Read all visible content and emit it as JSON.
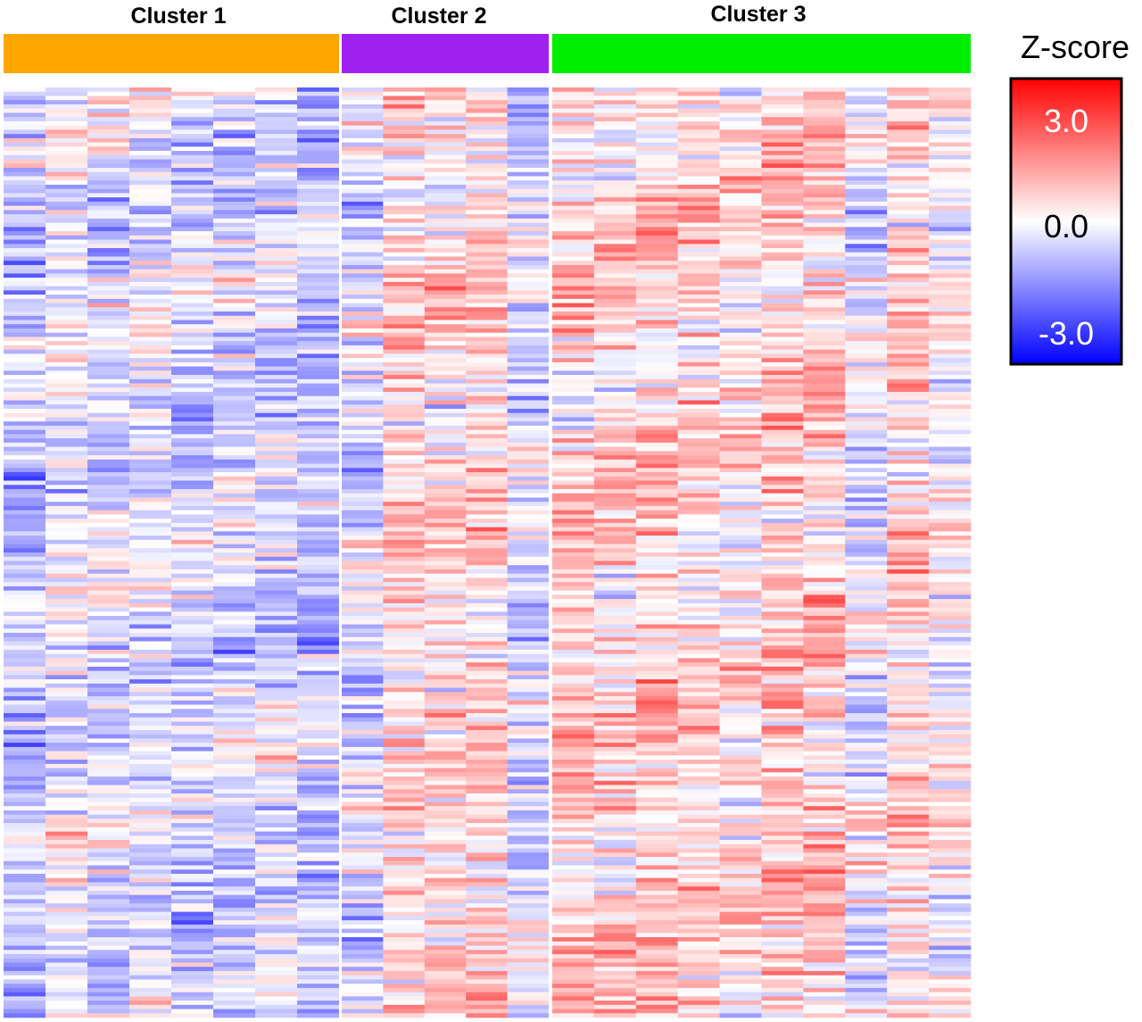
{
  "chart_data": {
    "type": "heatmap",
    "title": "",
    "xlabel": "",
    "ylabel": "",
    "row_count": 220,
    "value_range": [
      -3.0,
      3.0
    ],
    "colorscale": {
      "low": "#0000ff",
      "mid": "#ffffff",
      "high": "#ff0000"
    },
    "legend": {
      "title": "Z-score",
      "placement": "top-right",
      "ticks": [
        {
          "label": "3.0",
          "value": 3.0,
          "color": "#ffffff"
        },
        {
          "label": "0.0",
          "value": 0.0,
          "color": "#000000"
        },
        {
          "label": "-3.0",
          "value": -3.0,
          "color": "#ffffff"
        }
      ]
    },
    "clusters": [
      {
        "name": "Cluster 1",
        "color": "#ffa500",
        "column_count": 8,
        "column_trends": [
          -0.55,
          -0.15,
          -0.3,
          -0.2,
          -0.35,
          -0.4,
          -0.35,
          -0.6
        ]
      },
      {
        "name": "Cluster 2",
        "color": "#a020f0",
        "column_count": 5,
        "column_trends": [
          -0.3,
          0.35,
          0.3,
          0.4,
          -0.35
        ]
      },
      {
        "name": "Cluster 3",
        "color": "#00ee00",
        "column_count": 10,
        "column_trends": [
          0.45,
          0.35,
          0.5,
          0.4,
          0.2,
          0.55,
          0.55,
          -0.2,
          0.45,
          0.1
        ]
      }
    ]
  }
}
